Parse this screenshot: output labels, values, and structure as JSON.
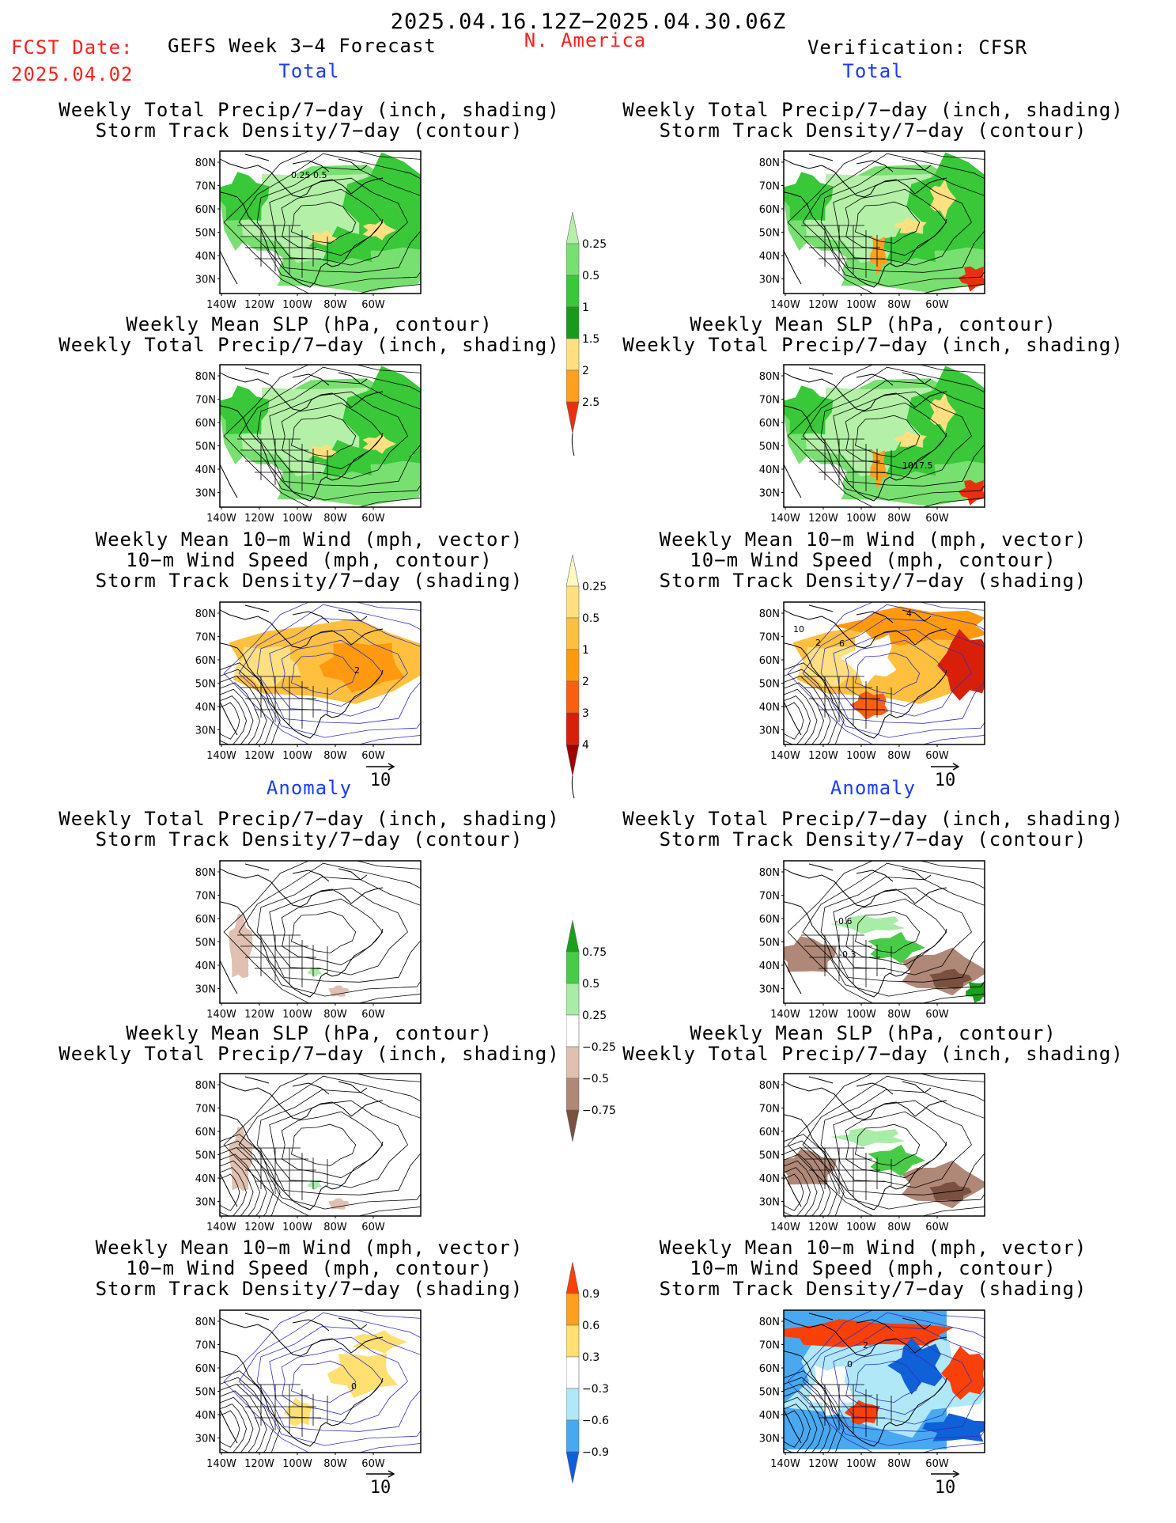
{
  "header": {
    "period": "2025.04.16.12Z−2025.04.30.06Z",
    "fcst_label": "FCST Date:",
    "fcst_date": "2025.04.02",
    "model": "GEFS Week 3−4 Forecast",
    "region": "N. America",
    "verification": "Verification: CFSR"
  },
  "sections": {
    "total": "Total",
    "anomaly": "Anomaly"
  },
  "titles": {
    "precip_storm": [
      "Weekly Total Precip/7−day (inch, shading)",
      "Storm Track Density/7−day (contour)"
    ],
    "slp_precip": [
      "Weekly Mean SLP (hPa, contour)",
      "Weekly Total Precip/7−day (inch, shading)"
    ],
    "wind_storm": [
      "Weekly Mean 10−m Wind (mph, vector)",
      "10−m Wind Speed (mph, contour)",
      "Storm Track Density/7−day (shading)"
    ]
  },
  "axes": {
    "lat": [
      "80N",
      "70N",
      "60N",
      "50N",
      "40N",
      "30N"
    ],
    "lon": [
      "140W",
      "120W",
      "100W",
      "80W",
      "60W"
    ]
  },
  "vector_ref": "10",
  "map_labels": {
    "fcst_total_precip": "0.25 0.5",
    "obs_total_slp": "1017.5",
    "obs_total_wind": [
      "10",
      "2",
      "6",
      "4"
    ],
    "fcst_total_wind": "2",
    "obs_anom_precip": [
      "-0.6",
      "-0.3"
    ],
    "fcst_anom_wind": "0",
    "obs_anom_wind": [
      "2",
      "0"
    ]
  },
  "colorbars": {
    "precip_total": {
      "levels": [
        "0.25",
        "0.5",
        "1",
        "1.5",
        "2",
        "2.5"
      ],
      "colors": [
        "#b4f0a8",
        "#78e070",
        "#38c838",
        "#1a9a1a",
        "#ffe080",
        "#ffa020",
        "#e83010"
      ]
    },
    "storm_total": {
      "levels": [
        "0.25",
        "0.5",
        "1",
        "2",
        "3",
        "4"
      ],
      "colors": [
        "#fff8c0",
        "#ffe080",
        "#ffc040",
        "#ff9a10",
        "#f86010",
        "#d82008",
        "#a00000"
      ]
    },
    "precip_anom": {
      "levels": [
        "0.75",
        "0.5",
        "0.25",
        "−0.25",
        "−0.5",
        "−0.75"
      ],
      "colors": [
        "#1aa01a",
        "#48cc48",
        "#a8eca8",
        "#ffffff",
        "#e0c0b0",
        "#b08878",
        "#7a5040"
      ]
    },
    "storm_anom": {
      "levels": [
        "0.9",
        "0.6",
        "0.3",
        "−0.3",
        "−0.6",
        "−0.9"
      ],
      "colors": [
        "#f84008",
        "#ffa020",
        "#ffe070",
        "#ffffff",
        "#b0e8f8",
        "#48a8f0",
        "#1060d8"
      ]
    }
  }
}
